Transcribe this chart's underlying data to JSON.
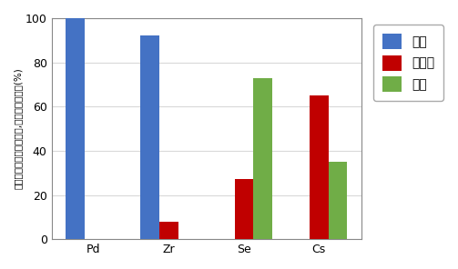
{
  "categories": [
    "Pd",
    "Zr",
    "Se",
    "Cs"
  ],
  "solid": [
    100,
    92,
    0,
    0
  ],
  "molten_salt": [
    0,
    8,
    27,
    65
  ],
  "gas": [
    0,
    0,
    73,
    35
  ],
  "solid_color": "#4472c4",
  "molten_salt_color": "#c00000",
  "gas_color": "#70ad47",
  "ylabel": "固体への残存率、溶融塩,気体への移行率(%)",
  "ylim": [
    0,
    100
  ],
  "yticks": [
    0,
    20,
    40,
    60,
    80,
    100
  ],
  "legend_labels": [
    "固体",
    "溶融塩",
    "気体"
  ],
  "bar_width": 0.25,
  "figsize": [
    5.03,
    2.96
  ],
  "dpi": 100,
  "background_color": "#ffffff",
  "grid_color": "#d9d9d9"
}
